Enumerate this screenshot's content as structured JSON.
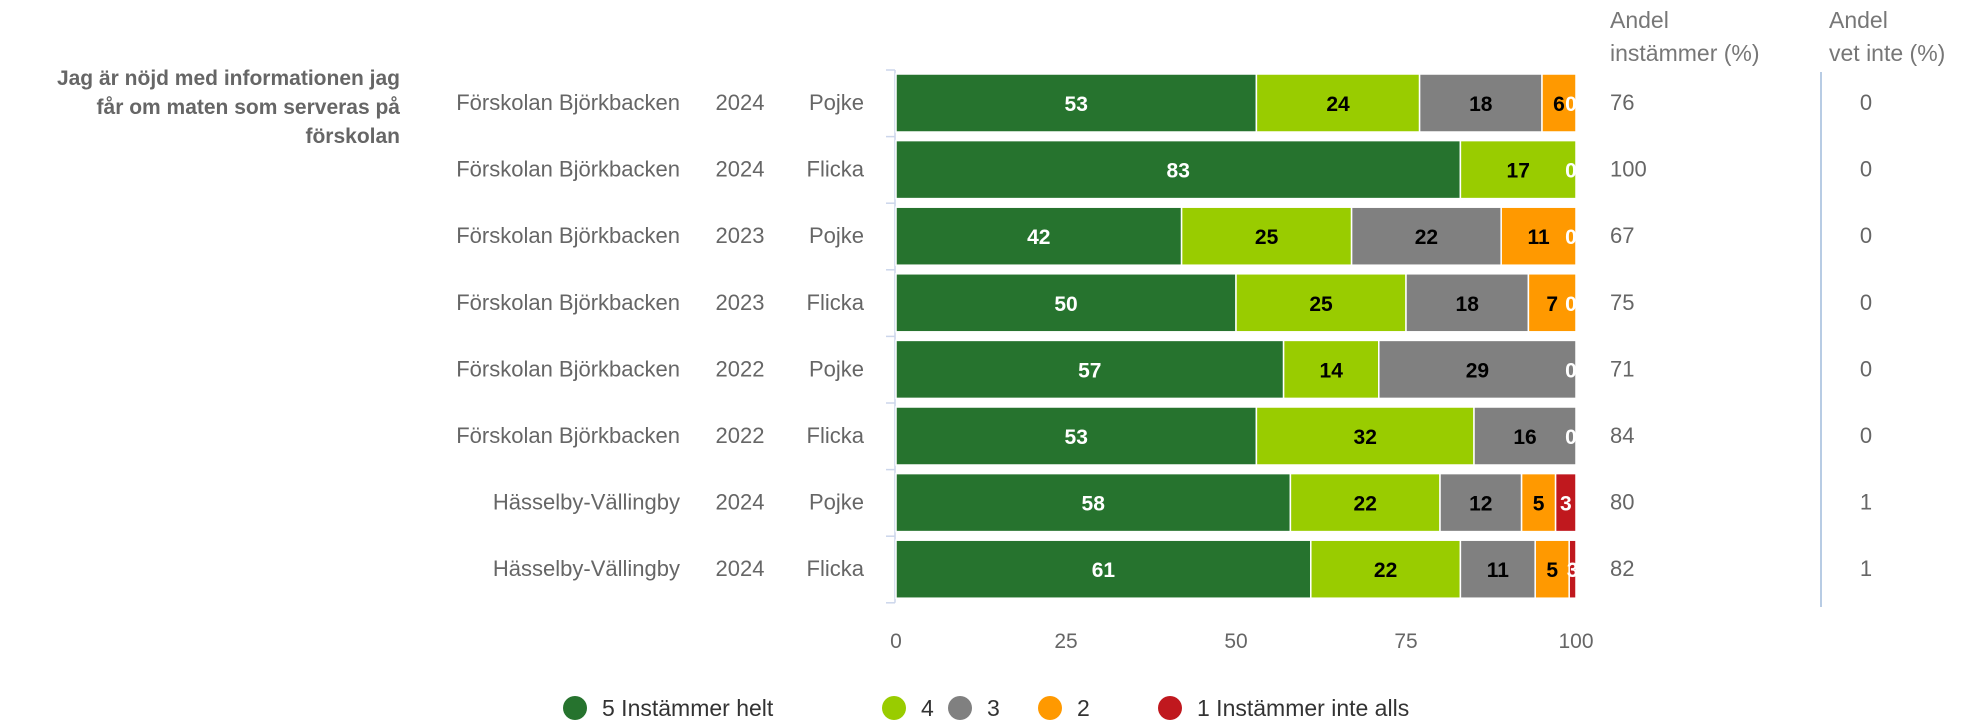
{
  "chart_data": {
    "type": "bar",
    "orientation": "horizontal",
    "stacked": true,
    "question": [
      "Jag är nöjd med informationen jag",
      "får om maten som serveras på",
      "förskolan"
    ],
    "xlim": [
      0,
      100
    ],
    "xticks": [
      "0",
      "25",
      "50",
      "75",
      "100"
    ],
    "grid": false,
    "legend_position": "bottom",
    "column_headers": {
      "agree": [
        "Andel",
        "instämmer (%)"
      ],
      "dontknow": [
        "Andel",
        "vet inte (%)"
      ]
    },
    "series": [
      {
        "name": "5 Instämmer helt",
        "color": "#26732e",
        "label_color": "#ffffff"
      },
      {
        "name": "4",
        "color": "#99cc00",
        "label_color": "#000000"
      },
      {
        "name": "3",
        "color": "#808080",
        "label_color": "#000000"
      },
      {
        "name": "2",
        "color": "#ff9900",
        "label_color": "#000000"
      },
      {
        "name": "1 Instämmer inte alls",
        "color": "#c0181e",
        "label_color": "#ffffff"
      }
    ],
    "rows": [
      {
        "unit": "Förskolan Björkbacken",
        "year": "2024",
        "gender": "Pojke",
        "values": [
          53,
          24,
          18,
          6,
          0
        ],
        "agree": "76",
        "dontknow": "0"
      },
      {
        "unit": "Förskolan Björkbacken",
        "year": "2024",
        "gender": "Flicka",
        "values": [
          83,
          17,
          0,
          0,
          0
        ],
        "agree": "100",
        "dontknow": "0"
      },
      {
        "unit": "Förskolan Björkbacken",
        "year": "2023",
        "gender": "Pojke",
        "values": [
          42,
          25,
          22,
          11,
          0
        ],
        "agree": "67",
        "dontknow": "0"
      },
      {
        "unit": "Förskolan Björkbacken",
        "year": "2023",
        "gender": "Flicka",
        "values": [
          50,
          25,
          18,
          7,
          0
        ],
        "agree": "75",
        "dontknow": "0"
      },
      {
        "unit": "Förskolan Björkbacken",
        "year": "2022",
        "gender": "Pojke",
        "values": [
          57,
          14,
          29,
          0,
          0
        ],
        "agree": "71",
        "dontknow": "0"
      },
      {
        "unit": "Förskolan Björkbacken",
        "year": "2022",
        "gender": "Flicka",
        "values": [
          53,
          32,
          16,
          0,
          0
        ],
        "agree": "84",
        "dontknow": "0"
      },
      {
        "unit": "Hässelby-Vällingby",
        "year": "2024",
        "gender": "Pojke",
        "values": [
          58,
          22,
          12,
          5,
          3
        ],
        "agree": "80",
        "dontknow": "1"
      },
      {
        "unit": "Hässelby-Vällingby",
        "year": "2024",
        "gender": "Flicka",
        "values": [
          61,
          22,
          11,
          5,
          3
        ],
        "agree": "82",
        "dontknow": "1"
      }
    ]
  }
}
